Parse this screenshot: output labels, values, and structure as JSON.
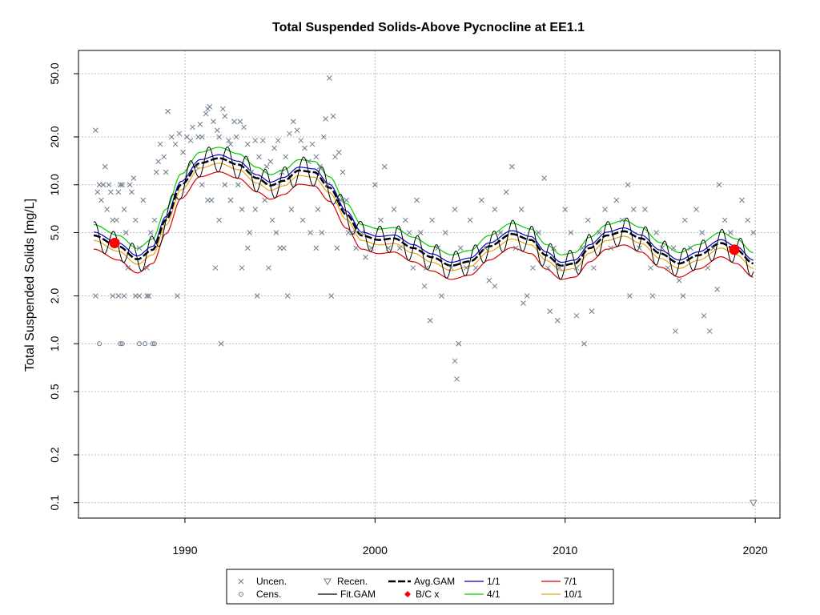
{
  "chart_data": {
    "type": "line",
    "title": "Total Suspended Solids-Above Pycnocline at EE1.1",
    "xlabel": "",
    "ylabel": "Total Suspended Solids [mg/L]",
    "y_scale": "log",
    "xlim": [
      1984.4,
      2021.3
    ],
    "ylim": [
      0.08,
      70
    ],
    "x_ticks": [
      "1990",
      "2000",
      "2010",
      "2020"
    ],
    "y_ticks": [
      "0.1",
      "0.2",
      "0.5",
      "1.0",
      "2.0",
      "5.0",
      "10.0",
      "20.0",
      "50.0"
    ],
    "grid": true,
    "legend_position": "bottom-center",
    "legend": [
      {
        "label": "Uncen.",
        "symbol": "x"
      },
      {
        "label": "Cens.",
        "symbol": "circle"
      },
      {
        "label": "Recen.",
        "symbol": "triangle-down"
      },
      {
        "label": "Fit.GAM",
        "symbol": "line"
      },
      {
        "label": "Avg.GAM",
        "symbol": "dashed-line"
      },
      {
        "label": "B/C x",
        "symbol": "dot"
      },
      {
        "label": "1/1",
        "symbol": "line"
      },
      {
        "label": "4/1",
        "symbol": "line"
      },
      {
        "label": "7/1",
        "symbol": "line"
      },
      {
        "label": "10/1",
        "symbol": "line"
      }
    ],
    "colors": {
      "uncensored": "#6b7b8c",
      "avg_gam": "#000000",
      "fit_gam": "#000000",
      "bc": "#ff0000",
      "jan": "#0000cc",
      "apr": "#00cc00",
      "jul": "#dd0000",
      "oct": "#e8a317"
    },
    "seasonal_offsets": {
      "jan": 1.05,
      "apr": 1.17,
      "jul": 0.82,
      "oct": 0.93
    },
    "fit_amplitude": 0.2,
    "avg_gam": {
      "x": [
        1985.2,
        1986.5,
        1987.5,
        1988.3,
        1989.0,
        1989.8,
        1990.8,
        1991.8,
        1992.8,
        1993.8,
        1994.5,
        1995.2,
        1996.0,
        1996.8,
        1997.6,
        1998.5,
        1999.3,
        2000.2,
        2001.0,
        2002.0,
        2003.0,
        2004.0,
        2005.0,
        2006.0,
        2007.2,
        2008.2,
        2009.0,
        2009.8,
        2010.5,
        2011.3,
        2012.2,
        2013.1,
        2014.0,
        2015.0,
        2016.0,
        2017.0,
        2018.2,
        2019.0,
        2019.9
      ],
      "y": [
        4.8,
        4.1,
        3.4,
        3.9,
        6.0,
        10.0,
        13.7,
        14.7,
        13.4,
        11.0,
        9.9,
        10.6,
        12.3,
        12.0,
        9.6,
        6.5,
        4.8,
        4.5,
        4.6,
        4.0,
        3.5,
        3.1,
        3.3,
        4.1,
        4.9,
        4.5,
        3.6,
        3.1,
        3.2,
        4.0,
        4.8,
        5.1,
        4.6,
        3.7,
        3.2,
        3.6,
        4.3,
        3.9,
        3.2
      ]
    },
    "uncensored": [
      [
        1985.3,
        22
      ],
      [
        1985.4,
        9
      ],
      [
        1985.5,
        10
      ],
      [
        1985.6,
        8
      ],
      [
        1985.7,
        10
      ],
      [
        1985.8,
        13
      ],
      [
        1985.9,
        7
      ],
      [
        1986.0,
        10
      ],
      [
        1986.1,
        9
      ],
      [
        1986.2,
        6
      ],
      [
        1986.4,
        6
      ],
      [
        1986.5,
        9
      ],
      [
        1986.6,
        10
      ],
      [
        1986.7,
        10
      ],
      [
        1986.8,
        7
      ],
      [
        1986.9,
        5
      ],
      [
        1987.0,
        3
      ],
      [
        1987.1,
        10
      ],
      [
        1987.2,
        9
      ],
      [
        1987.3,
        11
      ],
      [
        1987.4,
        6
      ],
      [
        1987.6,
        4
      ],
      [
        1987.8,
        8
      ],
      [
        1988.0,
        3
      ],
      [
        1988.2,
        5
      ],
      [
        1988.4,
        6
      ],
      [
        1988.5,
        12
      ],
      [
        1988.6,
        14
      ],
      [
        1985.3,
        2
      ],
      [
        1986.2,
        2
      ],
      [
        1986.5,
        2
      ],
      [
        1986.8,
        2
      ],
      [
        1987.4,
        2
      ],
      [
        1987.6,
        2
      ],
      [
        1988.0,
        2
      ],
      [
        1988.1,
        2
      ],
      [
        1989.6,
        2
      ],
      [
        1988.7,
        18
      ],
      [
        1988.9,
        15
      ],
      [
        1989.0,
        12
      ],
      [
        1989.1,
        29
      ],
      [
        1989.3,
        20
      ],
      [
        1989.5,
        18
      ],
      [
        1989.7,
        21
      ],
      [
        1989.9,
        16
      ],
      [
        1990.1,
        20
      ],
      [
        1990.3,
        19
      ],
      [
        1990.4,
        23
      ],
      [
        1990.6,
        13
      ],
      [
        1990.7,
        20
      ],
      [
        1990.8,
        24
      ],
      [
        1990.9,
        20
      ],
      [
        1991.1,
        28
      ],
      [
        1991.2,
        30
      ],
      [
        1991.3,
        31
      ],
      [
        1991.5,
        25
      ],
      [
        1991.7,
        22
      ],
      [
        1991.8,
        20
      ],
      [
        1992.0,
        30
      ],
      [
        1992.1,
        27
      ],
      [
        1992.3,
        19
      ],
      [
        1992.4,
        18
      ],
      [
        1992.6,
        25
      ],
      [
        1992.7,
        20
      ],
      [
        1992.9,
        25
      ],
      [
        1993.1,
        23
      ],
      [
        1993.3,
        18
      ],
      [
        1993.5,
        12
      ],
      [
        1993.7,
        19
      ],
      [
        1993.9,
        15
      ],
      [
        1994.1,
        19
      ],
      [
        1994.3,
        13
      ],
      [
        1994.5,
        14
      ],
      [
        1994.7,
        17
      ],
      [
        1994.9,
        19
      ],
      [
        1995.1,
        12
      ],
      [
        1995.3,
        15
      ],
      [
        1995.5,
        21
      ],
      [
        1995.7,
        25
      ],
      [
        1995.9,
        22
      ],
      [
        1996.1,
        19
      ],
      [
        1996.3,
        17
      ],
      [
        1996.5,
        14
      ],
      [
        1996.7,
        18
      ],
      [
        1996.9,
        15
      ],
      [
        1997.1,
        13
      ],
      [
        1997.3,
        20
      ],
      [
        1997.4,
        26
      ],
      [
        1997.5,
        10
      ],
      [
        1997.6,
        47
      ],
      [
        1997.8,
        27
      ],
      [
        1997.9,
        15
      ],
      [
        1998.1,
        16
      ],
      [
        1998.2,
        8
      ],
      [
        1998.3,
        12
      ],
      [
        1998.5,
        8
      ],
      [
        1998.6,
        5
      ],
      [
        1990.9,
        10
      ],
      [
        1991.2,
        8
      ],
      [
        1991.4,
        8
      ],
      [
        1991.8,
        6
      ],
      [
        1992.1,
        10
      ],
      [
        1992.4,
        8
      ],
      [
        1992.8,
        10
      ],
      [
        1993.0,
        7
      ],
      [
        1993.4,
        5
      ],
      [
        1993.7,
        7
      ],
      [
        1994.2,
        8
      ],
      [
        1994.6,
        6
      ],
      [
        1994.8,
        5
      ],
      [
        1995.0,
        4
      ],
      [
        1995.6,
        7
      ],
      [
        1996.2,
        6
      ],
      [
        1996.6,
        5
      ],
      [
        1997.0,
        7
      ],
      [
        1997.2,
        5
      ],
      [
        1998.0,
        4
      ],
      [
        1991.6,
        3
      ],
      [
        1993.0,
        3
      ],
      [
        1993.3,
        4
      ],
      [
        1993.8,
        2
      ],
      [
        1994.4,
        3
      ],
      [
        1995.2,
        4
      ],
      [
        1995.4,
        2
      ],
      [
        1996.9,
        4
      ],
      [
        1997.7,
        2
      ],
      [
        1991.9,
        1
      ],
      [
        1998.8,
        5
      ],
      [
        1999.0,
        4
      ],
      [
        1999.3,
        5
      ],
      [
        1999.5,
        3.5
      ],
      [
        1999.8,
        4
      ],
      [
        2000.0,
        10
      ],
      [
        2000.3,
        6
      ],
      [
        2000.5,
        13
      ],
      [
        2000.7,
        4
      ],
      [
        2001.0,
        7
      ],
      [
        2001.3,
        4
      ],
      [
        2001.6,
        6
      ],
      [
        2001.8,
        5
      ],
      [
        2002.0,
        3
      ],
      [
        2002.2,
        8
      ],
      [
        2002.4,
        5
      ],
      [
        2002.7,
        3
      ],
      [
        2003.0,
        6
      ],
      [
        2003.3,
        4
      ],
      [
        2003.5,
        2
      ],
      [
        2003.7,
        5
      ],
      [
        2004.0,
        3
      ],
      [
        2004.2,
        7
      ],
      [
        2004.5,
        4
      ],
      [
        2004.8,
        3
      ],
      [
        2005.0,
        6
      ],
      [
        2005.3,
        3
      ],
      [
        2005.6,
        8
      ],
      [
        2005.8,
        4
      ],
      [
        2006.0,
        2.5
      ],
      [
        2006.3,
        7
      ],
      [
        2006.6,
        5
      ],
      [
        2006.9,
        9
      ],
      [
        2007.2,
        13
      ],
      [
        2007.4,
        4
      ],
      [
        2007.7,
        7
      ],
      [
        2008.0,
        2
      ],
      [
        2008.3,
        3
      ],
      [
        2008.6,
        5
      ],
      [
        2008.9,
        11
      ],
      [
        2009.1,
        3
      ],
      [
        2009.4,
        4
      ],
      [
        2009.7,
        3
      ],
      [
        2010.0,
        7
      ],
      [
        2010.3,
        5
      ],
      [
        2010.6,
        3
      ],
      [
        2010.9,
        4
      ],
      [
        2011.2,
        6
      ],
      [
        2011.5,
        3
      ],
      [
        2011.8,
        5
      ],
      [
        2012.1,
        7
      ],
      [
        2012.4,
        4
      ],
      [
        2012.7,
        8
      ],
      [
        2013.0,
        6
      ],
      [
        2013.3,
        10
      ],
      [
        2013.6,
        7
      ],
      [
        2013.9,
        4
      ],
      [
        2014.2,
        7
      ],
      [
        2014.5,
        3
      ],
      [
        2014.8,
        5
      ],
      [
        2015.1,
        4
      ],
      [
        2015.4,
        3
      ],
      [
        2015.7,
        4
      ],
      [
        2016.0,
        2.5
      ],
      [
        2016.3,
        6
      ],
      [
        2016.6,
        4
      ],
      [
        2016.9,
        7
      ],
      [
        2017.2,
        5
      ],
      [
        2017.5,
        3
      ],
      [
        2017.8,
        4
      ],
      [
        2018.1,
        10
      ],
      [
        2018.4,
        6
      ],
      [
        2018.7,
        5
      ],
      [
        2019.0,
        4
      ],
      [
        2019.3,
        8
      ],
      [
        2019.6,
        6
      ],
      [
        2019.9,
        5
      ],
      [
        2002.9,
        1.4
      ],
      [
        2004.2,
        0.78
      ],
      [
        2004.4,
        1.0
      ],
      [
        2004.3,
        0.6
      ],
      [
        2007.8,
        1.8
      ],
      [
        2009.2,
        1.6
      ],
      [
        2009.6,
        1.4
      ],
      [
        2010.6,
        1.5
      ],
      [
        2011.4,
        1.6
      ],
      [
        2011.0,
        1.0
      ],
      [
        2013.4,
        2.0
      ],
      [
        2015.8,
        1.2
      ],
      [
        2016.2,
        2.0
      ],
      [
        2017.3,
        1.5
      ],
      [
        2017.6,
        1.2
      ],
      [
        2018.0,
        2.2
      ],
      [
        2014.6,
        2.0
      ],
      [
        2002.6,
        2.3
      ],
      [
        2006.3,
        2.3
      ]
    ],
    "censored": [
      [
        1985.5,
        1.0
      ],
      [
        1986.6,
        1.0
      ],
      [
        1986.7,
        1.0
      ],
      [
        1987.6,
        1.0
      ],
      [
        1987.9,
        1.0
      ],
      [
        1988.3,
        1.0
      ],
      [
        1988.4,
        1.0
      ]
    ],
    "recensored": [
      [
        2019.9,
        0.1
      ]
    ],
    "bc_points": [
      [
        1986.3,
        4.3
      ],
      [
        2018.9,
        3.9
      ]
    ]
  }
}
